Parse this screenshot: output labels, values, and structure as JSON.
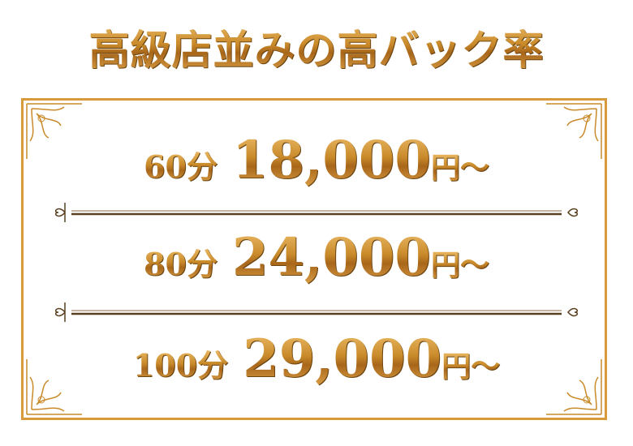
{
  "title": "高級店並みの高バック率",
  "rows": [
    {
      "duration": "60分",
      "price": "18,000",
      "unit": "円〜"
    },
    {
      "duration": "80分",
      "price": "24,000",
      "unit": "円〜"
    },
    {
      "duration": "100分",
      "price": "29,000",
      "unit": "円〜"
    }
  ],
  "colors": {
    "gold": "#c98a2a",
    "frame": "#d89a3a",
    "divider": "#5a4020"
  }
}
